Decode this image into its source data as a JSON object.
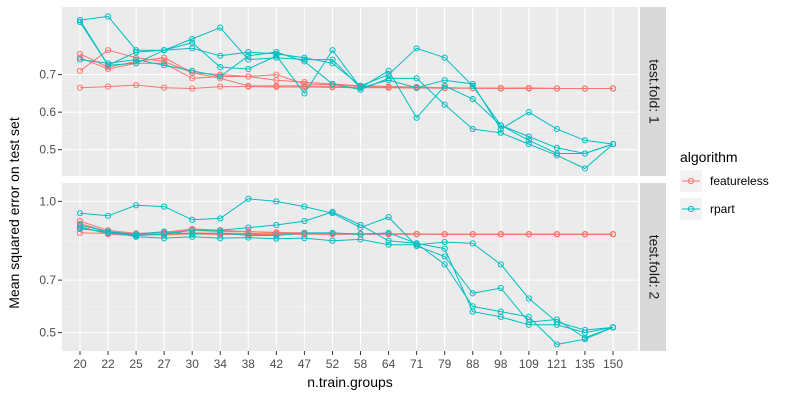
{
  "chart_data": {
    "type": "line",
    "xlabel": "n.train.groups",
    "ylabel": "Mean squared error on test set",
    "x_ticks": [
      "20",
      "22",
      "25",
      "27",
      "30",
      "34",
      "38",
      "42",
      "47",
      "52",
      "58",
      "64",
      "71",
      "79",
      "88",
      "98",
      "109",
      "121",
      "135",
      "150"
    ],
    "legend": {
      "title": "algorithm",
      "position": "right",
      "entries": [
        {
          "name": "featureless",
          "color": "#F8766D"
        },
        {
          "name": "rpart",
          "color": "#00BFC4"
        }
      ]
    },
    "panels": [
      {
        "label": "test.fold: 1",
        "y_ticks": [
          0.5,
          0.6,
          0.7
        ],
        "y_tick_labels": [
          "0.5",
          "0.6",
          "0.7"
        ],
        "ylim": [
          0.43,
          0.88
        ],
        "series": [
          {
            "algorithm": "featureless",
            "values": [
              0.665,
              0.668,
              0.672,
              0.665,
              0.663,
              0.668,
              0.668,
              0.667,
              0.667,
              0.666,
              0.665,
              0.665,
              0.664,
              0.664,
              0.664,
              0.663,
              0.663,
              0.663,
              0.663,
              0.663
            ]
          },
          {
            "algorithm": "featureless",
            "values": [
              0.71,
              0.765,
              0.745,
              0.735,
              0.705,
              0.7,
              0.695,
              0.685,
              0.68,
              0.675,
              0.67,
              0.668,
              0.666,
              0.665,
              0.664,
              0.664,
              0.664,
              0.663,
              0.663,
              0.663
            ]
          },
          {
            "algorithm": "featureless",
            "values": [
              0.755,
              0.72,
              0.735,
              0.745,
              0.705,
              0.69,
              0.67,
              0.67,
              0.67,
              0.668,
              0.667,
              0.666,
              0.665,
              0.664,
              0.664,
              0.663,
              0.664,
              0.663,
              0.663,
              0.663
            ]
          },
          {
            "algorithm": "featureless",
            "values": [
              0.745,
              0.715,
              0.73,
              0.73,
              0.69,
              0.695,
              0.695,
              0.7,
              0.675,
              0.673,
              0.67,
              0.668,
              0.667,
              0.665,
              0.664,
              0.664,
              0.664,
              0.663,
              0.663,
              0.663
            ]
          },
          {
            "algorithm": "rpart",
            "values": [
              0.84,
              0.725,
              0.76,
              0.765,
              0.77,
              0.75,
              0.76,
              0.755,
              0.745,
              0.73,
              0.67,
              0.7,
              0.77,
              0.745,
              0.67,
              0.565,
              0.525,
              0.49,
              0.49,
              0.515
            ]
          },
          {
            "algorithm": "rpart",
            "values": [
              0.74,
              0.73,
              0.74,
              0.725,
              0.71,
              0.695,
              0.75,
              0.76,
              0.735,
              0.675,
              0.66,
              0.69,
              0.69,
              0.62,
              0.555,
              0.545,
              0.515,
              0.485,
              0.45,
              0.515
            ]
          },
          {
            "algorithm": "rpart",
            "values": [
              0.845,
              0.855,
              0.765,
              0.765,
              0.785,
              0.72,
              0.715,
              0.75,
              0.65,
              0.765,
              0.665,
              0.685,
              0.665,
              0.685,
              0.675,
              0.555,
              0.6,
              0.555,
              0.525,
              0.515
            ]
          },
          {
            "algorithm": "rpart",
            "values": [
              0.845,
              0.725,
              0.73,
              0.765,
              0.795,
              0.825,
              0.74,
              0.745,
              0.74,
              0.74,
              0.665,
              0.71,
              0.585,
              0.67,
              0.635,
              0.565,
              0.535,
              0.505,
              0.49,
              0.515
            ]
          }
        ]
      },
      {
        "label": "test.fold: 2",
        "y_ticks": [
          0.5,
          0.7,
          1.0
        ],
        "y_tick_labels": [
          "0.5",
          "0.7",
          "1.0"
        ],
        "ylim": [
          0.43,
          1.07
        ],
        "series": [
          {
            "algorithm": "featureless",
            "values": [
              0.905,
              0.875,
              0.87,
              0.875,
              0.88,
              0.878,
              0.878,
              0.876,
              0.876,
              0.875,
              0.875,
              0.875,
              0.875,
              0.875,
              0.875,
              0.875,
              0.875,
              0.875,
              0.875,
              0.875
            ]
          },
          {
            "algorithm": "featureless",
            "values": [
              0.915,
              0.885,
              0.875,
              0.88,
              0.89,
              0.885,
              0.885,
              0.882,
              0.88,
              0.878,
              0.877,
              0.876,
              0.876,
              0.875,
              0.875,
              0.875,
              0.875,
              0.875,
              0.875,
              0.875
            ]
          },
          {
            "algorithm": "featureless",
            "values": [
              0.925,
              0.89,
              0.878,
              0.882,
              0.895,
              0.89,
              0.885,
              0.88,
              0.878,
              0.877,
              0.876,
              0.876,
              0.876,
              0.875,
              0.875,
              0.875,
              0.875,
              0.875,
              0.875,
              0.875
            ]
          },
          {
            "algorithm": "featureless",
            "values": [
              0.88,
              0.878,
              0.875,
              0.872,
              0.876,
              0.874,
              0.874,
              0.874,
              0.875,
              0.875,
              0.875,
              0.875,
              0.875,
              0.875,
              0.875,
              0.875,
              0.875,
              0.875,
              0.875,
              0.875
            ]
          },
          {
            "algorithm": "rpart",
            "values": [
              0.955,
              0.945,
              0.985,
              0.98,
              0.93,
              0.935,
              1.01,
              1.0,
              0.98,
              0.955,
              0.9,
              0.94,
              0.83,
              0.79,
              0.65,
              0.67,
              0.54,
              0.55,
              0.48,
              0.52
            ]
          },
          {
            "algorithm": "rpart",
            "values": [
              0.9,
              0.88,
              0.87,
              0.875,
              0.89,
              0.89,
              0.9,
              0.91,
              0.925,
              0.96,
              0.91,
              0.85,
              0.84,
              0.82,
              0.58,
              0.56,
              0.53,
              0.53,
              0.5,
              0.52
            ]
          },
          {
            "algorithm": "rpart",
            "values": [
              0.91,
              0.885,
              0.865,
              0.86,
              0.865,
              0.86,
              0.862,
              0.858,
              0.86,
              0.85,
              0.855,
              0.835,
              0.835,
              0.845,
              0.84,
              0.76,
              0.63,
              0.54,
              0.51,
              0.52
            ]
          },
          {
            "algorithm": "rpart",
            "values": [
              0.895,
              0.885,
              0.875,
              0.885,
              0.875,
              0.88,
              0.87,
              0.87,
              0.88,
              0.88,
              0.875,
              0.88,
              0.84,
              0.76,
              0.6,
              0.58,
              0.56,
              0.455,
              0.475,
              0.52
            ]
          }
        ]
      }
    ]
  }
}
